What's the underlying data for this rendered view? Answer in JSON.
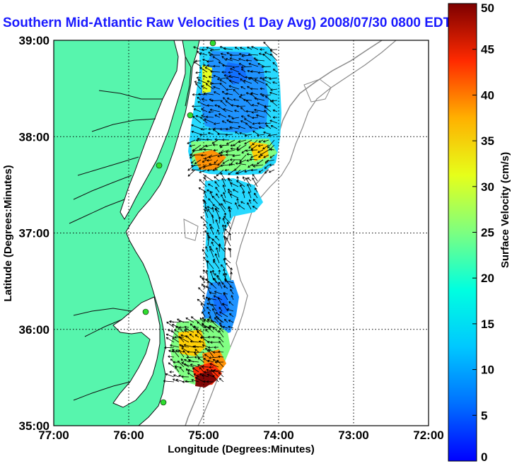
{
  "title": "Southern Mid-Atlantic Raw Velocities (1 Day Avg) 2008/07/30 0800 EDT",
  "map": {
    "xlabel": "Longitude (Degrees:Minutes)",
    "ylabel": "Latitude (Degrees:Minutes)",
    "lon_ticks": [
      "77:00",
      "76:00",
      "75:00",
      "74:00",
      "73:00",
      "72:00"
    ],
    "lat_ticks": [
      "39:00",
      "38:00",
      "37:00",
      "36:00",
      "35:00"
    ],
    "lon_range": [
      -77,
      -72
    ],
    "lat_range": [
      35,
      39
    ],
    "grid": true,
    "colors": {
      "land": "#57f5ad",
      "bathymetry": "#8a8a8a",
      "coast": "#111111",
      "site_marker": "#2fdc2f"
    }
  },
  "colorbar": {
    "label": "Surface Velocity (cm/s)",
    "ticks": [
      "0",
      "5",
      "10",
      "15",
      "20",
      "25",
      "30",
      "35",
      "40",
      "45",
      "50"
    ],
    "range": [
      0,
      50
    ]
  }
}
